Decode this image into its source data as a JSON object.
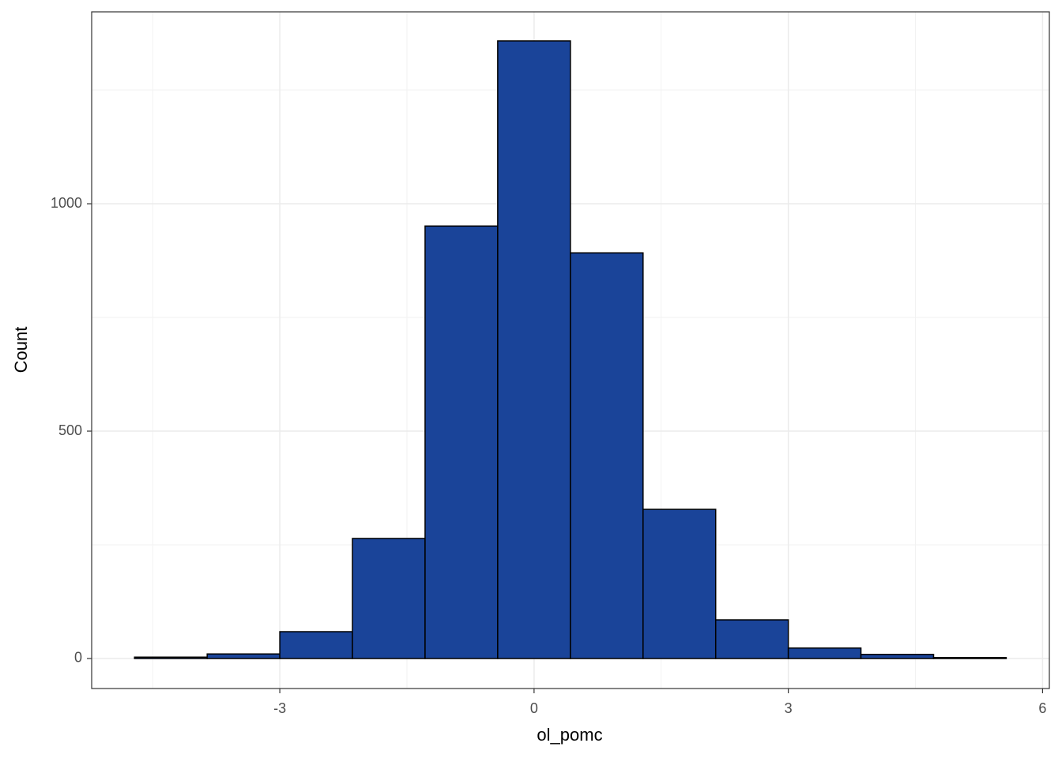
{
  "chart_data": {
    "type": "histogram",
    "x_label": "ol_pomc",
    "y_label": "Count",
    "bins": [
      -4.714,
      -3.857,
      -3,
      -2.143,
      -1.286,
      -0.429,
      0.429,
      1.286,
      2.143,
      3,
      3.857,
      4.714,
      5.571
    ],
    "values": [
      3,
      10,
      59,
      264,
      951,
      1358,
      892,
      328,
      85,
      23,
      9,
      2
    ],
    "color": "#1a4499",
    "edgecolor": "#000000",
    "xlim": [
      -5.22,
      6.08
    ],
    "xticks": [
      -3,
      0,
      3,
      6
    ],
    "ylim": [
      -66,
      1422
    ],
    "yticks": [
      0,
      500,
      1000
    ],
    "minor_xticks": [
      -4.5,
      -1.5,
      1.5,
      4.5
    ],
    "minor_yticks": [
      250,
      750,
      1250
    ],
    "grid": true
  }
}
